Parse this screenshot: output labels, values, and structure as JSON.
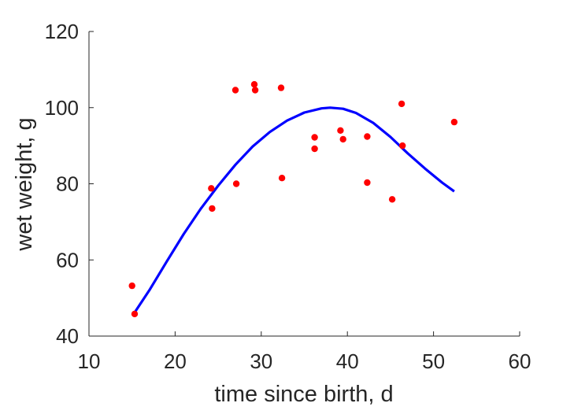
{
  "chart_data": {
    "type": "scatter",
    "xlabel": "time since birth, d",
    "ylabel": "wet weight, g",
    "xlim": [
      10,
      60
    ],
    "ylim": [
      40,
      120
    ],
    "xticks": [
      10,
      20,
      30,
      40,
      50,
      60
    ],
    "yticks": [
      40,
      60,
      80,
      100,
      120
    ],
    "xtick_labels": [
      "10",
      "20",
      "30",
      "40",
      "50",
      "60"
    ],
    "ytick_labels": [
      "40",
      "60",
      "80",
      "100",
      "120"
    ],
    "grid": false,
    "legend": "none",
    "series": [
      {
        "kind": "scatter",
        "color": "#ff0000",
        "points": [
          {
            "x": 15.0,
            "y": 53.2
          },
          {
            "x": 15.3,
            "y": 45.8
          },
          {
            "x": 24.2,
            "y": 78.8
          },
          {
            "x": 24.3,
            "y": 73.5
          },
          {
            "x": 27.0,
            "y": 104.6
          },
          {
            "x": 27.1,
            "y": 80.0
          },
          {
            "x": 29.2,
            "y": 106.1
          },
          {
            "x": 29.3,
            "y": 104.6
          },
          {
            "x": 32.3,
            "y": 105.2
          },
          {
            "x": 32.4,
            "y": 81.5
          },
          {
            "x": 36.2,
            "y": 92.2
          },
          {
            "x": 36.2,
            "y": 89.2
          },
          {
            "x": 39.2,
            "y": 94.0
          },
          {
            "x": 39.5,
            "y": 91.7
          },
          {
            "x": 42.3,
            "y": 92.4
          },
          {
            "x": 42.3,
            "y": 80.3
          },
          {
            "x": 45.2,
            "y": 75.9
          },
          {
            "x": 46.3,
            "y": 101.0
          },
          {
            "x": 46.4,
            "y": 90.0
          },
          {
            "x": 52.4,
            "y": 96.2
          }
        ]
      },
      {
        "kind": "line",
        "color": "#0000ff",
        "points": [
          {
            "x": 15.3,
            "y": 46.2
          },
          {
            "x": 17.0,
            "y": 52.0
          },
          {
            "x": 19.0,
            "y": 59.5
          },
          {
            "x": 21.0,
            "y": 66.8
          },
          {
            "x": 23.0,
            "y": 73.5
          },
          {
            "x": 25.0,
            "y": 79.5
          },
          {
            "x": 27.0,
            "y": 85.0
          },
          {
            "x": 29.0,
            "y": 89.8
          },
          {
            "x": 31.0,
            "y": 93.6
          },
          {
            "x": 33.0,
            "y": 96.6
          },
          {
            "x": 35.0,
            "y": 98.7
          },
          {
            "x": 37.0,
            "y": 99.8
          },
          {
            "x": 38.0,
            "y": 100.0
          },
          {
            "x": 39.5,
            "y": 99.7
          },
          {
            "x": 41.0,
            "y": 98.6
          },
          {
            "x": 43.0,
            "y": 96.0
          },
          {
            "x": 45.0,
            "y": 92.3
          },
          {
            "x": 47.0,
            "y": 88.0
          },
          {
            "x": 49.0,
            "y": 84.0
          },
          {
            "x": 51.0,
            "y": 80.3
          },
          {
            "x": 52.4,
            "y": 78.0
          }
        ]
      }
    ]
  }
}
